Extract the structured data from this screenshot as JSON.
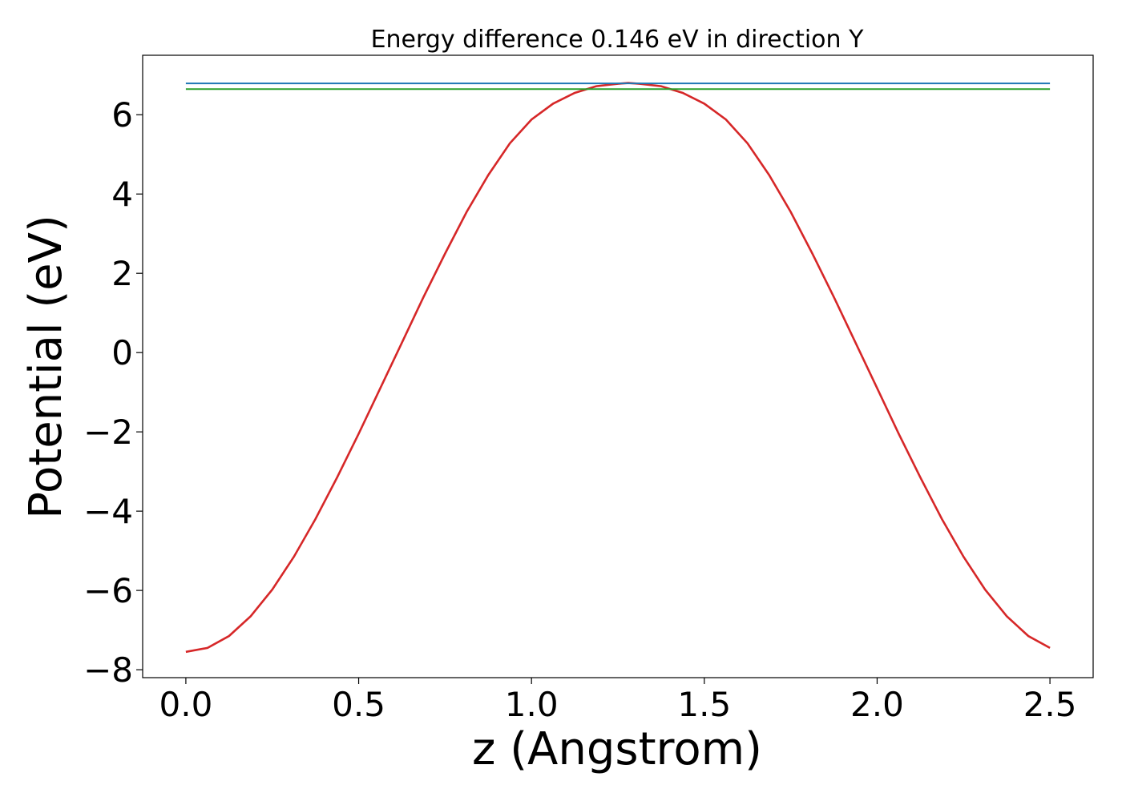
{
  "chart_data": {
    "type": "line",
    "title": "Energy difference 0.146 eV in direction Y",
    "xlabel": "z (Angstrom)",
    "ylabel": "Potential (eV)",
    "xlim": [
      -0.125,
      2.625
    ],
    "ylim": [
      -8.2,
      7.5
    ],
    "xticks": [
      0.0,
      0.5,
      1.0,
      1.5,
      2.0,
      2.5
    ],
    "xtick_labels": [
      "0.0",
      "0.5",
      "1.0",
      "1.5",
      "2.0",
      "2.5"
    ],
    "yticks": [
      -8,
      -6,
      -4,
      -2,
      0,
      2,
      4,
      6
    ],
    "ytick_labels": [
      "−8",
      "−6",
      "−4",
      "−2",
      "0",
      "2",
      "4",
      "6"
    ],
    "grid": false,
    "series": [
      {
        "color": "#d62728",
        "x": [
          0.0,
          0.0625,
          0.125,
          0.1875,
          0.25,
          0.3125,
          0.375,
          0.4375,
          0.5,
          0.5625,
          0.625,
          0.6875,
          0.75,
          0.8125,
          0.875,
          0.9375,
          1.0,
          1.0625,
          1.125,
          1.1875,
          1.25,
          1.28,
          1.3125,
          1.375,
          1.4375,
          1.5,
          1.5625,
          1.625,
          1.6875,
          1.75,
          1.8125,
          1.875,
          1.9375,
          2.0,
          2.0625,
          2.125,
          2.1875,
          2.25,
          2.3125,
          2.375,
          2.4375,
          2.5
        ],
        "y": [
          -7.55,
          -7.45,
          -7.15,
          -6.65,
          -5.98,
          -5.15,
          -4.2,
          -3.15,
          -2.05,
          -0.9,
          0.25,
          1.4,
          2.5,
          3.55,
          4.48,
          5.28,
          5.88,
          6.28,
          6.55,
          6.72,
          6.78,
          6.8,
          6.78,
          6.72,
          6.55,
          6.28,
          5.88,
          5.28,
          4.48,
          3.55,
          2.5,
          1.4,
          0.25,
          -0.9,
          -2.05,
          -3.15,
          -4.2,
          -5.15,
          -5.98,
          -6.65,
          -7.15,
          -7.45
        ]
      },
      {
        "color": "#1f77b4",
        "x": [
          0.0,
          2.5
        ],
        "y": [
          6.79,
          6.79
        ]
      },
      {
        "color": "#2ca02c",
        "x": [
          0.0,
          2.5
        ],
        "y": [
          6.645,
          6.645
        ]
      }
    ]
  }
}
